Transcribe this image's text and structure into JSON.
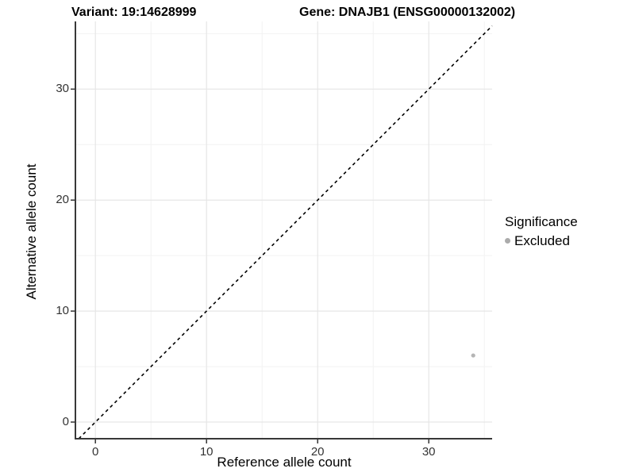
{
  "chart_data": {
    "type": "scatter",
    "title_left": "Variant: 19:14628999",
    "title_right": "Gene: DNAJB1 (ENSG00000132002)",
    "xlabel": "Reference allele count",
    "ylabel": "Alternative allele count",
    "x_ticks": [
      0,
      10,
      20,
      30
    ],
    "y_ticks": [
      0,
      10,
      20,
      30
    ],
    "x_minor_ticks": [
      5,
      15,
      25,
      35
    ],
    "y_minor_ticks": [
      5,
      15,
      25,
      35
    ],
    "xlim": [
      -1.8,
      35.7
    ],
    "ylim": [
      -1.5,
      36.1
    ],
    "grid": {
      "major": true,
      "minor": true
    },
    "reference_line": {
      "type": "identity_y_equals_x",
      "style": "dashed",
      "color": "#000000"
    },
    "series": [
      {
        "name": "Excluded",
        "color": "#b5b5b5",
        "points": [
          {
            "x": 34,
            "y": 6
          }
        ]
      }
    ],
    "legend": {
      "title": "Significance",
      "position": "right",
      "entries": [
        {
          "label": "Excluded",
          "color": "#ababab"
        }
      ]
    },
    "colors": {
      "background": "#ffffff",
      "grid_major": "#e6e6e6",
      "grid_minor": "#f2f2f2",
      "axis_line": "#383838",
      "tick_mark": "#333333",
      "tick_text": "#333333"
    }
  }
}
